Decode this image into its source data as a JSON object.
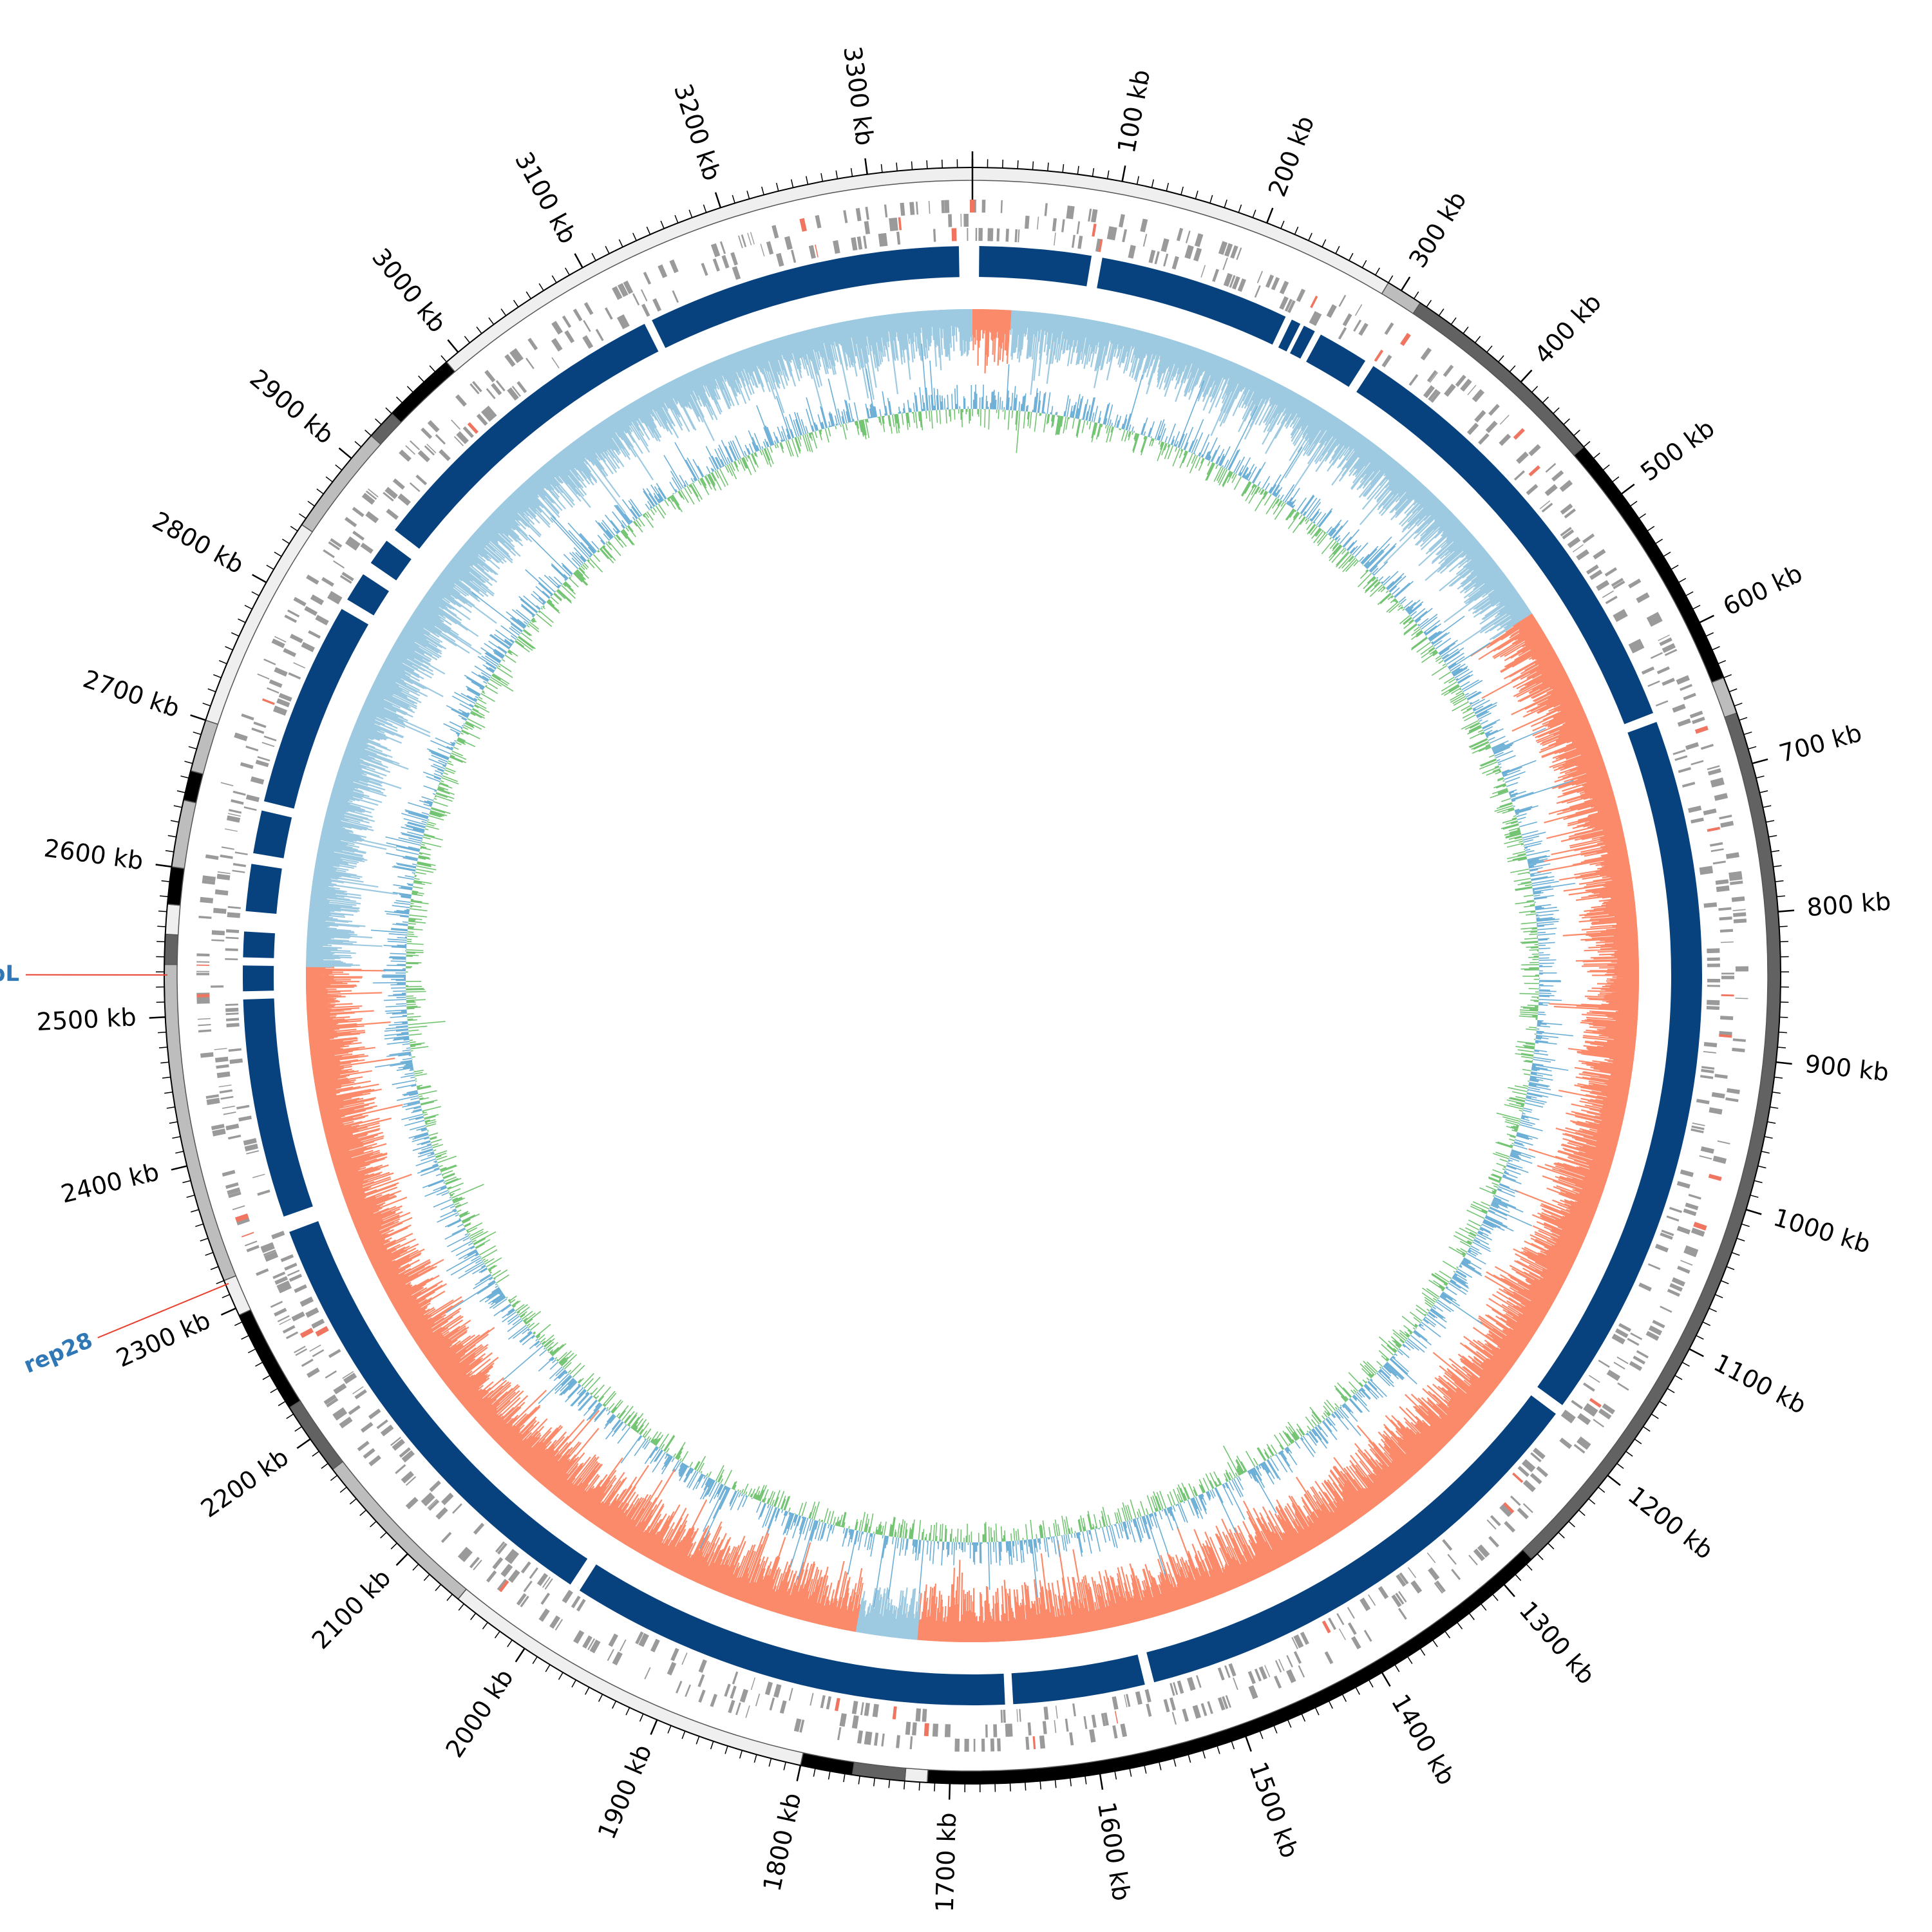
{
  "genome": {
    "length_kb": 3370,
    "tick_major_kb": 100,
    "tick_minor_kb": 10,
    "tick_unit": "kb"
  },
  "tick_labels": [
    "100 kb",
    "200 kb",
    "300 kb",
    "400 kb",
    "500 kb",
    "600 kb",
    "700 kb",
    "800 kb",
    "900 kb",
    "1000 kb",
    "1100 kb",
    "1200 kb",
    "1300 kb",
    "1400 kb",
    "1500 kb",
    "1600 kb",
    "1700 kb",
    "1800 kb",
    "1900 kb",
    "2000 kb",
    "2100 kb",
    "2200 kb",
    "2300 kb",
    "2400 kb",
    "2500 kb",
    "2600 kb",
    "2700 kb",
    "2800 kb",
    "2900 kb",
    "3000 kb",
    "3100 kb",
    "3200 kb",
    "3300 kb"
  ],
  "colors": {
    "band_light": "#efefef",
    "band_silver": "#bdbdbd",
    "band_dark": "#626262",
    "band_black": "#000000",
    "feature_grey": "#9a9a9a",
    "feature_red": "#f07560",
    "block_blue": "#08427e",
    "skew_light_blue": "#9ecae1",
    "skew_salmon": "#fb8a6a",
    "gc_blue": "#6aaed6",
    "gc_green": "#72c472",
    "label_blue": "#2f78b5",
    "leader_red": "#e8412f"
  },
  "outer_bands": [
    {
      "start": 0,
      "end": 290,
      "tone": "band_light"
    },
    {
      "start": 290,
      "end": 315,
      "tone": "band_silver"
    },
    {
      "start": 315,
      "end": 460,
      "tone": "band_dark"
    },
    {
      "start": 460,
      "end": 640,
      "tone": "band_black"
    },
    {
      "start": 640,
      "end": 665,
      "tone": "band_silver"
    },
    {
      "start": 665,
      "end": 1275,
      "tone": "band_dark"
    },
    {
      "start": 1275,
      "end": 1715,
      "tone": "band_black"
    },
    {
      "start": 1715,
      "end": 1730,
      "tone": "band_light"
    },
    {
      "start": 1730,
      "end": 1765,
      "tone": "band_dark"
    },
    {
      "start": 1765,
      "end": 1800,
      "tone": "band_black"
    },
    {
      "start": 1800,
      "end": 2055,
      "tone": "band_light"
    },
    {
      "start": 2055,
      "end": 2175,
      "tone": "band_silver"
    },
    {
      "start": 2175,
      "end": 2225,
      "tone": "band_dark"
    },
    {
      "start": 2225,
      "end": 2295,
      "tone": "band_black"
    },
    {
      "start": 2295,
      "end": 2320,
      "tone": "band_light"
    },
    {
      "start": 2320,
      "end": 2535,
      "tone": "band_silver"
    },
    {
      "start": 2535,
      "end": 2555,
      "tone": "band_dark"
    },
    {
      "start": 2555,
      "end": 2575,
      "tone": "band_light"
    },
    {
      "start": 2575,
      "end": 2600,
      "tone": "band_black"
    },
    {
      "start": 2600,
      "end": 2645,
      "tone": "band_silver"
    },
    {
      "start": 2645,
      "end": 2665,
      "tone": "band_black"
    },
    {
      "start": 2665,
      "end": 2700,
      "tone": "band_silver"
    },
    {
      "start": 2700,
      "end": 2845,
      "tone": "band_light"
    },
    {
      "start": 2845,
      "end": 2920,
      "tone": "band_silver"
    },
    {
      "start": 2920,
      "end": 2940,
      "tone": "band_dark"
    },
    {
      "start": 2940,
      "end": 2990,
      "tone": "band_black"
    },
    {
      "start": 2990,
      "end": 3370,
      "tone": "band_light"
    }
  ],
  "blue_blocks": [
    {
      "start": 5,
      "end": 88
    },
    {
      "start": 96,
      "end": 238
    },
    {
      "start": 243,
      "end": 250
    },
    {
      "start": 253,
      "end": 262
    },
    {
      "start": 267,
      "end": 305
    },
    {
      "start": 312,
      "end": 645
    },
    {
      "start": 652,
      "end": 1180
    },
    {
      "start": 1188,
      "end": 1550
    },
    {
      "start": 1557,
      "end": 1655
    },
    {
      "start": 1661,
      "end": 1990
    },
    {
      "start": 1998,
      "end": 2335
    },
    {
      "start": 2347,
      "end": 2510
    },
    {
      "start": 2516,
      "end": 2535
    },
    {
      "start": 2541,
      "end": 2560
    },
    {
      "start": 2575,
      "end": 2610
    },
    {
      "start": 2618,
      "end": 2650
    },
    {
      "start": 2657,
      "end": 2810
    },
    {
      "start": 2818,
      "end": 2840
    },
    {
      "start": 2850,
      "end": 2870
    },
    {
      "start": 2880,
      "end": 3120
    },
    {
      "start": 3126,
      "end": 3360
    }
  ],
  "skew_segments": [
    {
      "start": 0,
      "end": 32,
      "sign": "negative"
    },
    {
      "start": 32,
      "end": 535,
      "sign": "positive"
    },
    {
      "start": 535,
      "end": 1730,
      "sign": "negative"
    },
    {
      "start": 1730,
      "end": 1780,
      "sign": "positive"
    },
    {
      "start": 1780,
      "end": 2535,
      "sign": "negative"
    },
    {
      "start": 2535,
      "end": 3370,
      "sign": "positive"
    }
  ],
  "gene_labels": [
    {
      "name": "ClpL",
      "position_kb": 2528
    },
    {
      "name": "rep28",
      "position_kb": 2317
    }
  ]
}
